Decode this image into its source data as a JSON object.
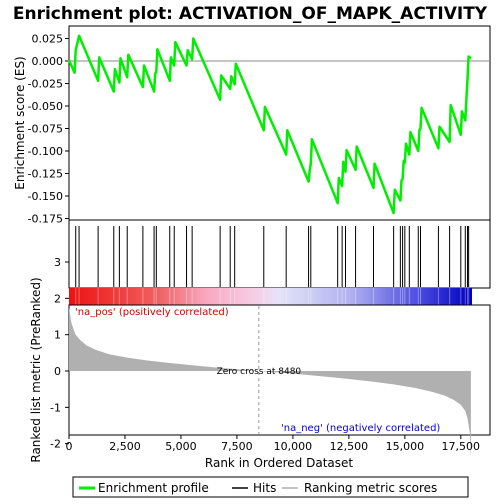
{
  "chart_data": {
    "type": "line",
    "title": "Enrichment plot: ACTIVATION_OF_MAPK_ACTIVITY",
    "xlabel": "Rank in Ordered Dataset",
    "ylabel_top": "Enrichment score (ES)",
    "ylabel_bottom": "Ranked list metric (PreRanked)",
    "xlim": [
      0,
      18000
    ],
    "top_ylim": [
      -0.175,
      0.035
    ],
    "bottom_ylim": [
      -2.5,
      3.5
    ],
    "x_ticks": [
      0,
      2500,
      5000,
      7500,
      10000,
      12500,
      15000,
      17500
    ],
    "x_tick_labels": [
      "0",
      "2,500",
      "5,000",
      "7,500",
      "10,000",
      "12,500",
      "15,000",
      "17,500"
    ],
    "top_y_ticks": [
      0.025,
      0.0,
      -0.025,
      -0.05,
      -0.075,
      -0.1,
      -0.125,
      -0.15,
      -0.175
    ],
    "top_y_tick_labels": [
      "0.025",
      "0.000",
      "-0.025",
      "-0.050",
      "-0.075",
      "-0.100",
      "-0.125",
      "-0.150",
      "-0.175"
    ],
    "bottom_y_ticks": [
      3,
      2,
      1,
      0,
      -1,
      -2
    ],
    "bottom_y_tick_labels": [
      "3",
      "2",
      "1",
      "0",
      "-1",
      "-2"
    ],
    "zero_cross": 8480,
    "zero_cross_label": "Zero cross at 8480",
    "pos_label": "'na_pos' (positively correlated)",
    "neg_label": "'na_neg' (negatively correlated)",
    "colors": {
      "profile": "#00ee00",
      "hits": "#000000",
      "metric_fill": "#b0b0b0",
      "pos_text": "#cc0000",
      "neg_text": "#0000cc"
    },
    "legend": [
      {
        "label": "Enrichment profile",
        "kind": "profile"
      },
      {
        "label": "Hits",
        "kind": "hits"
      },
      {
        "label": "Ranking metric scores",
        "kind": "metric"
      }
    ],
    "profile": {
      "x": [
        0,
        250,
        300,
        450,
        1300,
        1350,
        2000,
        2050,
        2250,
        2300,
        2600,
        2650,
        3300,
        3350,
        3800,
        3850,
        3900,
        3950,
        4500,
        4550,
        4700,
        4750,
        5250,
        5300,
        5500,
        5550,
        6750,
        6800,
        7200,
        7250,
        7400,
        7450,
        8700,
        8750,
        9700,
        9750,
        10700,
        10750,
        10800,
        10850,
        12000,
        12050,
        12200,
        12250,
        12350,
        12400,
        12800,
        12850,
        13600,
        13650,
        14500,
        14550,
        14800,
        14850,
        14900,
        14950,
        15000,
        15050,
        15200,
        15250,
        15600,
        15650,
        15700,
        15750,
        16500,
        16550,
        17000,
        17050,
        17500,
        17550,
        17700,
        17750,
        17800,
        17850,
        17950
      ],
      "y": [
        0.001,
        -0.013,
        0.012,
        0.028,
        -0.022,
        0.004,
        -0.034,
        -0.009,
        -0.024,
        0.003,
        -0.018,
        0.007,
        -0.029,
        -0.005,
        -0.034,
        -0.014,
        -0.012,
        0.013,
        -0.022,
        0.004,
        -0.005,
        0.021,
        -0.005,
        0.012,
        0.002,
        0.025,
        -0.043,
        -0.016,
        -0.031,
        -0.017,
        -0.026,
        -0.003,
        -0.077,
        -0.051,
        -0.104,
        -0.077,
        -0.134,
        -0.122,
        -0.114,
        -0.087,
        -0.158,
        -0.13,
        -0.139,
        -0.112,
        -0.123,
        -0.099,
        -0.121,
        -0.095,
        -0.141,
        -0.114,
        -0.169,
        -0.143,
        -0.155,
        -0.133,
        -0.131,
        -0.111,
        -0.113,
        -0.092,
        -0.104,
        -0.079,
        -0.1,
        -0.077,
        -0.075,
        -0.052,
        -0.097,
        -0.073,
        -0.09,
        -0.049,
        -0.082,
        -0.056,
        -0.066,
        -0.042,
        -0.02,
        0.005,
        0.003
      ]
    },
    "hits_x": [
      300,
      450,
      1300,
      2000,
      2250,
      2600,
      3300,
      3800,
      3900,
      4500,
      4700,
      5250,
      5500,
      6750,
      7200,
      7400,
      8700,
      9700,
      10700,
      10800,
      12000,
      12200,
      12350,
      12800,
      13600,
      14500,
      14800,
      14900,
      15000,
      15200,
      15600,
      15700,
      16500,
      17000,
      17500,
      17700,
      17800,
      17850
    ],
    "metric_curve": {
      "x": [
        0,
        100,
        200,
        300,
        500,
        800,
        1200,
        1800,
        2600,
        3500,
        4500,
        5500,
        6500,
        7500,
        8480,
        9500,
        10500,
        11500,
        12500,
        13500,
        14500,
        15500,
        16200,
        16800,
        17200,
        17500,
        17700,
        17800,
        17900,
        17950
      ],
      "y": [
        1.75,
        1.35,
        1.15,
        1.0,
        0.85,
        0.7,
        0.58,
        0.46,
        0.37,
        0.29,
        0.22,
        0.16,
        0.1,
        0.05,
        0.0,
        -0.05,
        -0.1,
        -0.16,
        -0.22,
        -0.29,
        -0.37,
        -0.47,
        -0.57,
        -0.68,
        -0.8,
        -0.93,
        -1.1,
        -1.3,
        -1.7,
        -2.4
      ]
    }
  }
}
